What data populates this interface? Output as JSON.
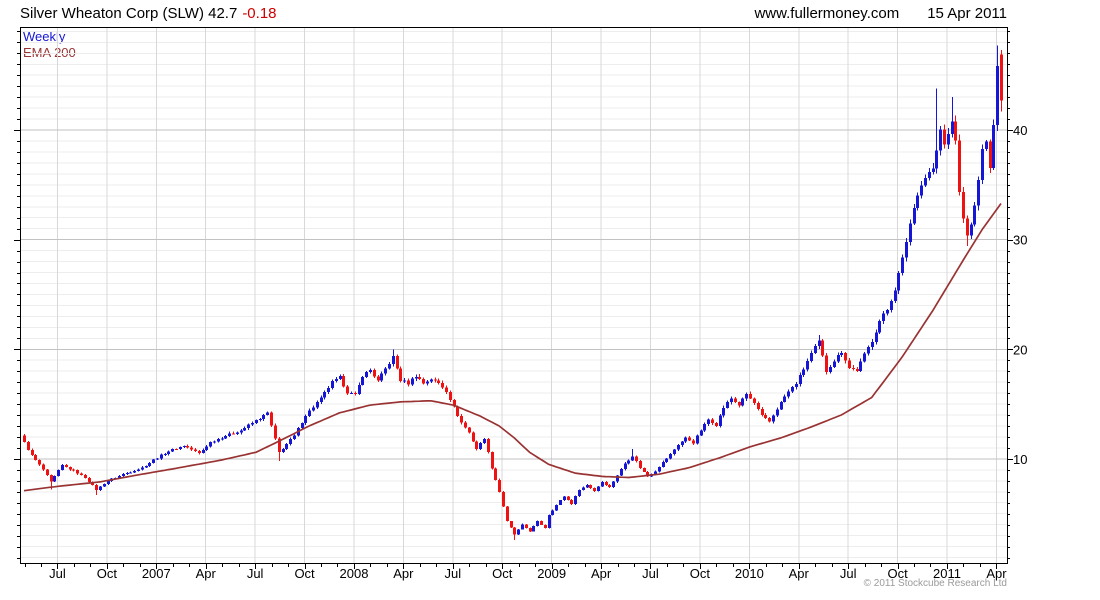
{
  "header": {
    "title_main": "Silver Wheaton Corp (SLW) 42.7",
    "title_change": "-0.18",
    "site": "www.fullermoney.com",
    "date": "15 Apr 2011"
  },
  "legend": {
    "weekly": "Weekly",
    "ema": "EMA 200"
  },
  "footer": {
    "copyright": "© 2011 Stockcube Research Ltd"
  },
  "colors": {
    "up_candle": "#1616d6",
    "down_candle": "#ee1212",
    "ema_line": "#993333",
    "change_text": "#cc0000",
    "grid_minor": "#ededed",
    "grid_vertical": "#d8d8d8",
    "grid_major": "#c2c2c2",
    "axis": "#000000",
    "copyright_text": "#9a9a9a"
  },
  "chart_data": {
    "type": "candlestick",
    "timeframe": "weekly",
    "title": "Silver Wheaton Corp (SLW) weekly candles with 200-period EMA",
    "x_labels": [
      "Jul",
      "Oct",
      "2007",
      "Apr",
      "Jul",
      "Oct",
      "2008",
      "Apr",
      "Jul",
      "Oct",
      "2009",
      "Apr",
      "Jul",
      "Oct",
      "2010",
      "Apr",
      "Jul",
      "Oct",
      "2011",
      "Apr"
    ],
    "y_ticks": [
      10,
      20,
      30,
      40
    ],
    "y_range": [
      0.5,
      49.4
    ],
    "grid_minor_step": 1,
    "weeks_total": 258,
    "first_quarter_week": 8.8,
    "weeks_per_quarter": 13.0,
    "weeks_per_month": 4.333,
    "price_close_anchors": [
      [
        0,
        11.5
      ],
      [
        2,
        10.3
      ],
      [
        5,
        9.0
      ],
      [
        7,
        7.9
      ],
      [
        10,
        9.4
      ],
      [
        13,
        8.9
      ],
      [
        16,
        8.3
      ],
      [
        19,
        7.2
      ],
      [
        22,
        8.0
      ],
      [
        26,
        8.6
      ],
      [
        31,
        9.2
      ],
      [
        34,
        9.9
      ],
      [
        38,
        10.7
      ],
      [
        42,
        11.2
      ],
      [
        46,
        10.5
      ],
      [
        49,
        11.5
      ],
      [
        53,
        12.1
      ],
      [
        57,
        12.6
      ],
      [
        62,
        13.7
      ],
      [
        64,
        14.2
      ],
      [
        67,
        10.6
      ],
      [
        71,
        12.1
      ],
      [
        74,
        14.0
      ],
      [
        78,
        15.5
      ],
      [
        81,
        17.0
      ],
      [
        83,
        17.4
      ],
      [
        85,
        16.1
      ],
      [
        87,
        15.8
      ],
      [
        89,
        17.6
      ],
      [
        91,
        18.1
      ],
      [
        93,
        17.1
      ],
      [
        95,
        18.2
      ],
      [
        97,
        19.3
      ],
      [
        99,
        17.2
      ],
      [
        101,
        16.9
      ],
      [
        103,
        17.6
      ],
      [
        105,
        16.9
      ],
      [
        107,
        17.3
      ],
      [
        109,
        16.9
      ],
      [
        111,
        16.2
      ],
      [
        113,
        14.7
      ],
      [
        115,
        13.3
      ],
      [
        117,
        12.4
      ],
      [
        119,
        10.9
      ],
      [
        121,
        11.9
      ],
      [
        123,
        9.2
      ],
      [
        125,
        7.0
      ],
      [
        127,
        4.3
      ],
      [
        129,
        3.1
      ],
      [
        131,
        4.0
      ],
      [
        133,
        3.4
      ],
      [
        135,
        4.3
      ],
      [
        137,
        3.7
      ],
      [
        138,
        4.9
      ],
      [
        140,
        5.8
      ],
      [
        142,
        6.6
      ],
      [
        144,
        5.9
      ],
      [
        146,
        7.2
      ],
      [
        148,
        7.6
      ],
      [
        150,
        7.1
      ],
      [
        152,
        7.9
      ],
      [
        154,
        7.4
      ],
      [
        156,
        8.5
      ],
      [
        158,
        9.6
      ],
      [
        160,
        10.3
      ],
      [
        162,
        9.2
      ],
      [
        164,
        8.4
      ],
      [
        166,
        8.9
      ],
      [
        168,
        9.7
      ],
      [
        170,
        10.4
      ],
      [
        172,
        11.3
      ],
      [
        174,
        11.9
      ],
      [
        176,
        11.5
      ],
      [
        178,
        12.6
      ],
      [
        180,
        13.6
      ],
      [
        182,
        13.1
      ],
      [
        184,
        14.7
      ],
      [
        186,
        15.5
      ],
      [
        188,
        14.9
      ],
      [
        190,
        15.9
      ],
      [
        192,
        15.1
      ],
      [
        194,
        13.9
      ],
      [
        196,
        13.4
      ],
      [
        198,
        14.6
      ],
      [
        200,
        15.7
      ],
      [
        203,
        16.9
      ],
      [
        205,
        18.2
      ],
      [
        207,
        19.6
      ],
      [
        209,
        20.7
      ],
      [
        211,
        18.0
      ],
      [
        213,
        19.0
      ],
      [
        215,
        19.8
      ],
      [
        217,
        18.3
      ],
      [
        219,
        18.1
      ],
      [
        221,
        19.5
      ],
      [
        223,
        20.8
      ],
      [
        225,
        22.6
      ],
      [
        227,
        23.6
      ],
      [
        229,
        25.5
      ],
      [
        231,
        28.2
      ],
      [
        233,
        31.5
      ],
      [
        235,
        34.3
      ],
      [
        237,
        35.7
      ],
      [
        239,
        36.5
      ],
      [
        240,
        38.0
      ],
      [
        241,
        40.0
      ],
      [
        242,
        38.6
      ],
      [
        243,
        39.6
      ],
      [
        244,
        41.0
      ],
      [
        245,
        38.8
      ],
      [
        246,
        34.5
      ],
      [
        247,
        31.8
      ],
      [
        248,
        30.6
      ],
      [
        249,
        31.2
      ],
      [
        250,
        33.0
      ],
      [
        251,
        35.5
      ],
      [
        252,
        38.0
      ],
      [
        253,
        39.2
      ],
      [
        254,
        36.8
      ],
      [
        255,
        40.5
      ],
      [
        256,
        45.8
      ],
      [
        257,
        42.7
      ]
    ],
    "wick_spikes": {
      "7": {
        "l": 7.2
      },
      "19": {
        "l": 6.7
      },
      "67": {
        "l": 9.8
      },
      "97": {
        "h": 20.0
      },
      "129": {
        "l": 2.6
      },
      "160": {
        "h": 10.9
      },
      "209": {
        "h": 21.3
      },
      "240": {
        "h": 43.8
      },
      "244": {
        "h": 43.0
      },
      "248": {
        "l": 29.4
      },
      "256": {
        "h": 47.7
      }
    },
    "last_candle": {
      "open": 46.9,
      "high": 47.3,
      "low": 41.7,
      "close": 42.7
    },
    "ema_anchors": [
      [
        0,
        7.1
      ],
      [
        9,
        7.5
      ],
      [
        20,
        7.9
      ],
      [
        31,
        8.6
      ],
      [
        41,
        9.2
      ],
      [
        52,
        9.9
      ],
      [
        61,
        10.6
      ],
      [
        67,
        11.6
      ],
      [
        75,
        13.0
      ],
      [
        83,
        14.2
      ],
      [
        91,
        14.9
      ],
      [
        99,
        15.2
      ],
      [
        107,
        15.3
      ],
      [
        113,
        14.9
      ],
      [
        120,
        13.9
      ],
      [
        125,
        13.0
      ],
      [
        129,
        11.9
      ],
      [
        133,
        10.6
      ],
      [
        138,
        9.5
      ],
      [
        145,
        8.7
      ],
      [
        152,
        8.4
      ],
      [
        159,
        8.3
      ],
      [
        167,
        8.6
      ],
      [
        175,
        9.2
      ],
      [
        183,
        10.1
      ],
      [
        191,
        11.1
      ],
      [
        199,
        11.9
      ],
      [
        207,
        12.9
      ],
      [
        215,
        14.0
      ],
      [
        223,
        15.6
      ],
      [
        231,
        19.3
      ],
      [
        239,
        23.5
      ],
      [
        247,
        28.1
      ],
      [
        252,
        30.9
      ],
      [
        257,
        33.3
      ]
    ]
  }
}
